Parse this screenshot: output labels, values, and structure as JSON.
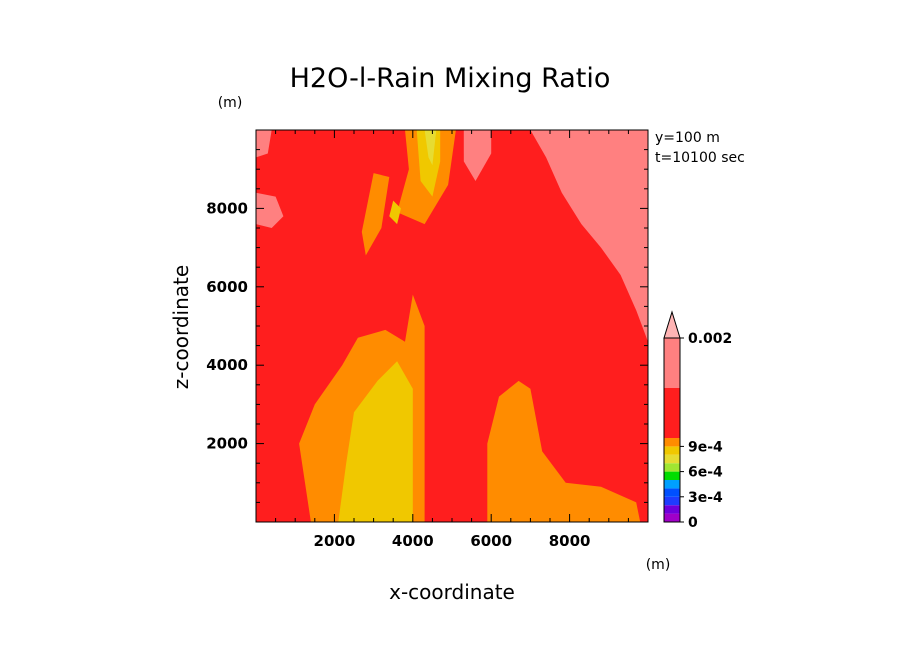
{
  "chart_data": {
    "type": "heatmap",
    "title": "H2O-l-Rain Mixing Ratio",
    "xlabel": "x-coordinate",
    "ylabel": "z-coordinate",
    "x_unit": "(m)",
    "y_unit": "(m)",
    "info": [
      "y=100 m",
      "t=10100 sec"
    ],
    "xlim": [
      0,
      10000
    ],
    "ylim": [
      0,
      10000
    ],
    "x_ticks": [
      2000,
      4000,
      6000,
      8000
    ],
    "y_ticks": [
      2000,
      4000,
      6000,
      8000
    ],
    "colorbar": {
      "levels": [
        0,
        0.0001,
        0.0002,
        0.0003,
        0.0004,
        0.0005,
        0.0006,
        0.0007,
        0.0008,
        0.0009,
        0.001,
        0.0015,
        0.002
      ],
      "colors": [
        "#a000c8",
        "#6e00dc",
        "#1e3cff",
        "#0050ff",
        "#00a0ff",
        "#00dc00",
        "#a0e632",
        "#e6dc32",
        "#f0c800",
        "#ff8c00",
        "#ff1e1e",
        "#ff8080",
        "#ffb4b4"
      ],
      "tick_labels": [
        {
          "value": 0,
          "label": "0"
        },
        {
          "value": 0.0003,
          "label": "3e-4"
        },
        {
          "value": 0.0006,
          "label": "6e-4"
        },
        {
          "value": 0.0009,
          "label": "9e-4"
        },
        {
          "value": 0.002,
          "label": "0.002"
        }
      ]
    },
    "regions": [
      {
        "level": "0.0015-0.002",
        "color": "#ff8080",
        "name": "upper-right-high-band",
        "points": [
          [
            7000,
            10000
          ],
          [
            10000,
            10000
          ],
          [
            10000,
            4600
          ],
          [
            9700,
            5400
          ],
          [
            9300,
            6300
          ],
          [
            8800,
            7000
          ],
          [
            8300,
            7600
          ],
          [
            7800,
            8400
          ],
          [
            7400,
            9300
          ]
        ]
      },
      {
        "level": "0.0015-0.002",
        "color": "#ff8080",
        "name": "upper-mid-high-streak",
        "points": [
          [
            5300,
            10000
          ],
          [
            6000,
            10000
          ],
          [
            6000,
            9400
          ],
          [
            5600,
            8700
          ],
          [
            5300,
            9200
          ]
        ]
      },
      {
        "level": "0.0015-0.002",
        "color": "#ff8080",
        "name": "left-edge-high-patch",
        "points": [
          [
            0,
            8400
          ],
          [
            500,
            8300
          ],
          [
            700,
            7800
          ],
          [
            400,
            7500
          ],
          [
            0,
            7600
          ]
        ]
      },
      {
        "level": "0.0015-0.002",
        "color": "#ff8080",
        "name": "left-top-high-patch",
        "points": [
          [
            0,
            10000
          ],
          [
            400,
            10000
          ],
          [
            300,
            9400
          ],
          [
            0,
            9300
          ]
        ]
      },
      {
        "level": "0.0008-0.0009",
        "color": "#ff8c00",
        "name": "lower-left-plume",
        "points": [
          [
            1400,
            0
          ],
          [
            4300,
            0
          ],
          [
            4300,
            5000
          ],
          [
            4000,
            5800
          ],
          [
            3800,
            4600
          ],
          [
            3300,
            4900
          ],
          [
            2600,
            4700
          ],
          [
            2200,
            4000
          ],
          [
            1500,
            3000
          ],
          [
            1100,
            2000
          ]
        ]
      },
      {
        "level": "0.0008-0.0009",
        "color": "#ff8c00",
        "name": "lower-right-plume",
        "points": [
          [
            5900,
            0
          ],
          [
            9800,
            0
          ],
          [
            9700,
            500
          ],
          [
            8800,
            900
          ],
          [
            7900,
            1000
          ],
          [
            7300,
            1800
          ],
          [
            7000,
            3400
          ],
          [
            6700,
            3600
          ],
          [
            6200,
            3200
          ],
          [
            5900,
            2000
          ]
        ]
      },
      {
        "level": "0.0008-0.0009",
        "color": "#ff8c00",
        "name": "upper-central-plume",
        "points": [
          [
            3800,
            10000
          ],
          [
            5100,
            10000
          ],
          [
            4900,
            8600
          ],
          [
            4300,
            7600
          ],
          [
            3600,
            7900
          ],
          [
            3900,
            9000
          ]
        ]
      },
      {
        "level": "0.0008-0.0009",
        "color": "#ff8c00",
        "name": "upper-left-streak",
        "points": [
          [
            3000,
            8900
          ],
          [
            3400,
            8800
          ],
          [
            3200,
            7500
          ],
          [
            2800,
            6800
          ],
          [
            2700,
            7400
          ]
        ]
      },
      {
        "level": "0.0007-0.0008",
        "color": "#f0c800",
        "name": "lower-left-core",
        "points": [
          [
            2100,
            0
          ],
          [
            4000,
            0
          ],
          [
            4000,
            3400
          ],
          [
            3600,
            4100
          ],
          [
            3100,
            3600
          ],
          [
            2500,
            2800
          ],
          [
            2300,
            1500
          ]
        ]
      },
      {
        "level": "0.0007-0.0008",
        "color": "#f0c800",
        "name": "upper-central-core",
        "points": [
          [
            4100,
            10000
          ],
          [
            4700,
            10000
          ],
          [
            4700,
            9200
          ],
          [
            4500,
            8300
          ],
          [
            4200,
            8700
          ]
        ]
      },
      {
        "level": "0.0007-0.0008",
        "color": "#f0c800",
        "name": "upper-left-core",
        "points": [
          [
            3500,
            8200
          ],
          [
            3700,
            8000
          ],
          [
            3600,
            7600
          ],
          [
            3400,
            7800
          ]
        ]
      },
      {
        "level": "0.0006-0.0007",
        "color": "#e6dc32",
        "name": "upper-central-max",
        "points": [
          [
            4300,
            10000
          ],
          [
            4600,
            10000
          ],
          [
            4500,
            9100
          ],
          [
            4400,
            9300
          ]
        ]
      }
    ]
  }
}
